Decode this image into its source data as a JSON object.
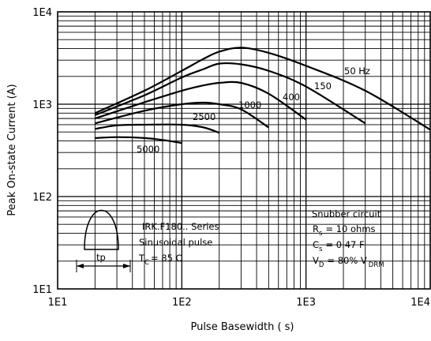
{
  "chart_data": {
    "type": "line",
    "xlabel": "Pulse Basewidth ( s)",
    "ylabel": "Peak On-state Current (A)",
    "xscale": "log",
    "yscale": "log",
    "xlim": [
      10,
      10000
    ],
    "ylim": [
      10,
      10000
    ],
    "x_ticks": [
      "1E1",
      "1E2",
      "1E3",
      "1E4"
    ],
    "y_ticks": [
      "1E1",
      "1E2",
      "1E3",
      "1E4"
    ],
    "grid": true,
    "series": [
      {
        "name": "50 Hz",
        "x": [
          20,
          50,
          100,
          150,
          200,
          300,
          500,
          1000,
          3000,
          10000
        ],
        "y": [
          800,
          1400,
          2300,
          3100,
          3700,
          4100,
          3600,
          2600,
          1400,
          530
        ]
      },
      {
        "name": "150",
        "x": [
          20,
          50,
          100,
          150,
          200,
          300,
          500,
          1000,
          3000
        ],
        "y": [
          760,
          1250,
          1950,
          2400,
          2750,
          2700,
          2300,
          1550,
          620
        ]
      },
      {
        "name": "400",
        "x": [
          20,
          50,
          100,
          150,
          200,
          300,
          500,
          1000
        ],
        "y": [
          700,
          1050,
          1400,
          1600,
          1700,
          1700,
          1300,
          680
        ]
      },
      {
        "name": "1000",
        "x": [
          20,
          50,
          100,
          150,
          200,
          300,
          500
        ],
        "y": [
          620,
          850,
          1000,
          1040,
          1000,
          880,
          560
        ]
      },
      {
        "name": "2500",
        "x": [
          20,
          30,
          50,
          100,
          150,
          200
        ],
        "y": [
          540,
          590,
          600,
          600,
          560,
          490
        ]
      },
      {
        "name": "5000",
        "x": [
          20,
          30,
          50,
          70,
          100
        ],
        "y": [
          430,
          440,
          430,
          410,
          380
        ]
      }
    ],
    "annotations": {
      "device": "IRK.F180.. Series",
      "waveform": "Sinusoidal pulse",
      "tc_prefix": "T",
      "tc_sub": "C",
      "tc_value": "= 85  C",
      "pulse_label": "tp",
      "snubber_title": "Snubber circuit",
      "rs_prefix": "R",
      "rs_sub": "s",
      "rs_value": "= 10 ohms",
      "cs_prefix": "C",
      "cs_sub": "s",
      "cs_value": "= 0.47   F",
      "vd_prefix": "V",
      "vd_sub": "D",
      "vd_value": "= 80% V",
      "vd_sub2": "DRM"
    }
  }
}
